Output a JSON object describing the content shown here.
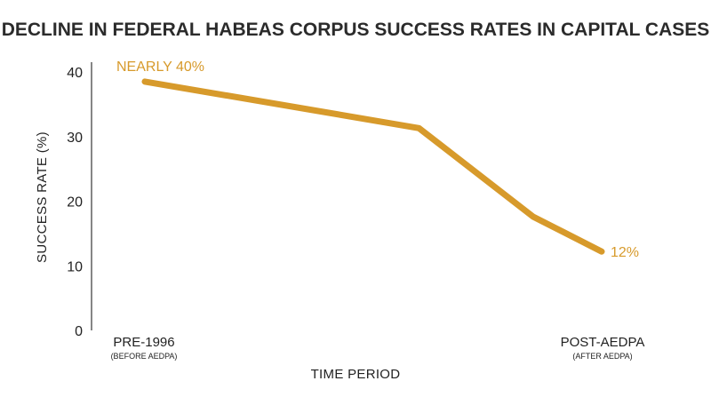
{
  "colors": {
    "series": "#D79A2B",
    "axis": "#444444",
    "text": "#222222"
  },
  "chart_data": {
    "type": "line",
    "title": "DECLINE IN FEDERAL HABEAS CORPUS SUCCESS RATES IN CAPITAL CASES",
    "xlabel": "TIME PERIOD",
    "ylabel": "SUCCESS RATE (%)",
    "ylim": [
      0,
      40
    ],
    "yticks": [
      0,
      10,
      20,
      30,
      40
    ],
    "grid": false,
    "categories": [
      {
        "label": "PRE-1996",
        "sublabel": "(BEFORE AEDPA)"
      },
      {
        "label": "POST-AEDPA",
        "sublabel": "(AFTER AEDPA)"
      }
    ],
    "x": [
      0,
      0.6,
      0.85,
      1
    ],
    "series": [
      {
        "values": [
          38.5,
          31.3,
          17.6,
          12.2
        ]
      }
    ],
    "annotations": [
      {
        "text": "NEARLY 40%",
        "point_index": 0
      },
      {
        "text": "12%",
        "point_index": 3
      }
    ]
  }
}
